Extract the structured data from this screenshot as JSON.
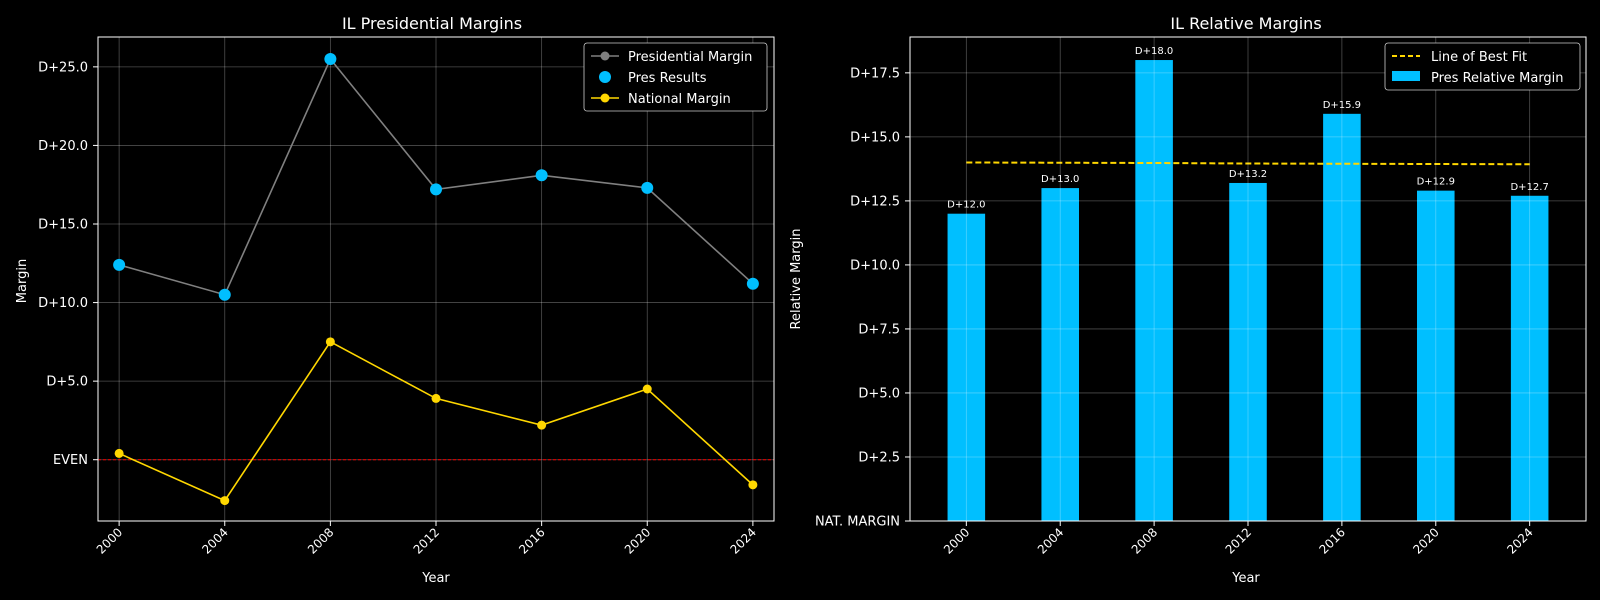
{
  "chart_data": [
    {
      "type": "line",
      "title": "IL Presidential Margins",
      "xlabel": "Year",
      "ylabel": "Margin",
      "x": [
        2000,
        2004,
        2008,
        2012,
        2016,
        2020,
        2024
      ],
      "x_ticks": [
        "2000",
        "2004",
        "2008",
        "2012",
        "2016",
        "2020",
        "2024"
      ],
      "xlim": [
        1999.2,
        2024.8
      ],
      "ylim": [
        -3.9,
        26.9
      ],
      "y_ticks": [
        {
          "value": 0,
          "label": "EVEN"
        },
        {
          "value": 5,
          "label": "D+5.0"
        },
        {
          "value": 10,
          "label": "D+10.0"
        },
        {
          "value": 15,
          "label": "D+15.0"
        },
        {
          "value": 20,
          "label": "D+20.0"
        },
        {
          "value": 25,
          "label": "D+25.0"
        }
      ],
      "grid": true,
      "legend_position": "top-right",
      "reference_line": {
        "value": 0,
        "color": "#ff0000",
        "style": "dashed"
      },
      "series": [
        {
          "name": "Presidential Margin",
          "kind": "line",
          "color": "#808080",
          "values": [
            12.4,
            10.5,
            25.5,
            17.2,
            18.1,
            17.3,
            11.2
          ]
        },
        {
          "name": "Pres Results",
          "kind": "scatter",
          "color": "#00bfff",
          "values": [
            12.4,
            10.5,
            25.5,
            17.2,
            18.1,
            17.3,
            11.2
          ]
        },
        {
          "name": "National Margin",
          "kind": "line",
          "color": "#ffd700",
          "values": [
            0.4,
            -2.6,
            7.5,
            3.9,
            2.2,
            4.5,
            -1.6
          ]
        }
      ]
    },
    {
      "type": "bar",
      "title": "IL Relative Margins",
      "xlabel": "Year",
      "ylabel": "Relative Margin",
      "categories": [
        "2000",
        "2004",
        "2008",
        "2012",
        "2016",
        "2020",
        "2024"
      ],
      "ylim": [
        0,
        18.9
      ],
      "y_ticks": [
        {
          "value": 0,
          "label": "NAT. MARGIN"
        },
        {
          "value": 2.5,
          "label": "D+2.5"
        },
        {
          "value": 5,
          "label": "D+5.0"
        },
        {
          "value": 7.5,
          "label": "D+7.5"
        },
        {
          "value": 10,
          "label": "D+10.0"
        },
        {
          "value": 12.5,
          "label": "D+12.5"
        },
        {
          "value": 15,
          "label": "D+15.0"
        },
        {
          "value": 17.5,
          "label": "D+17.5"
        }
      ],
      "grid": true,
      "legend_position": "top-right",
      "series": [
        {
          "name": "Pres Relative Margin",
          "kind": "bar",
          "color": "#00bfff",
          "values": [
            12.0,
            13.0,
            18.0,
            13.2,
            15.9,
            12.9,
            12.7
          ],
          "data_labels": [
            "D+12.0",
            "D+13.0",
            "D+18.0",
            "D+13.2",
            "D+15.9",
            "D+12.9",
            "D+12.7"
          ]
        },
        {
          "name": "Line of Best Fit",
          "kind": "line",
          "style": "dashed",
          "color": "#ffd700",
          "values": [
            14.0,
            13.99,
            13.98,
            13.96,
            13.95,
            13.94,
            13.93
          ]
        }
      ]
    }
  ]
}
